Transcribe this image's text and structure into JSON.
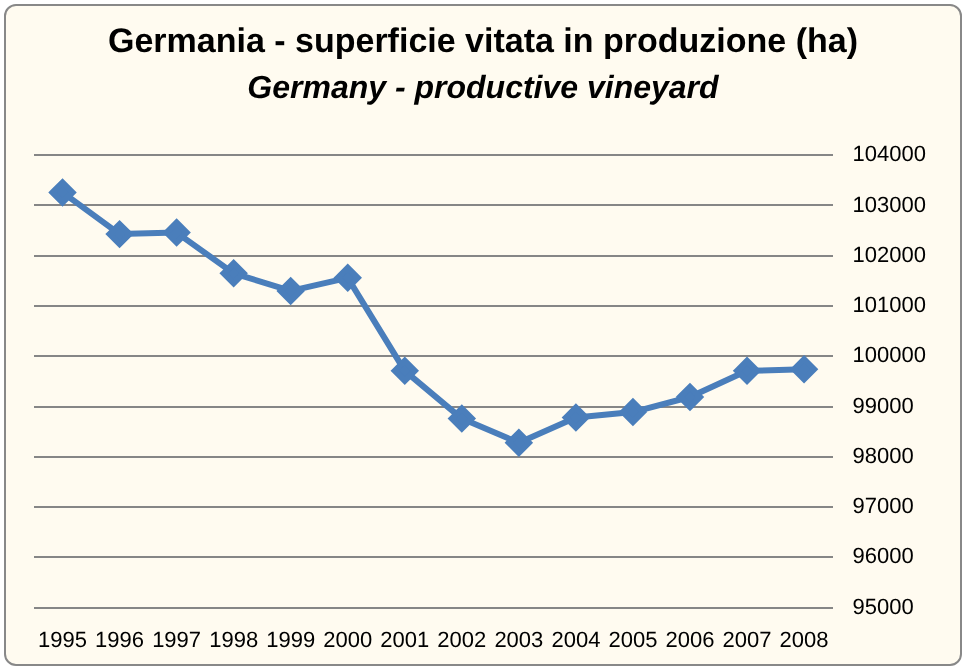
{
  "chart_data": {
    "type": "line",
    "title": "Germania - superficie vitata in produzione (ha)",
    "subtitle": "Germany - productive vineyard",
    "categories": [
      "1995",
      "1996",
      "1997",
      "1998",
      "1999",
      "2000",
      "2001",
      "2002",
      "2003",
      "2004",
      "2005",
      "2006",
      "2007",
      "2008"
    ],
    "series": [
      {
        "color": "#4a7ebb",
        "values": [
          103260,
          102430,
          102460,
          101650,
          101300,
          101560,
          99710,
          98760,
          98280,
          98780,
          98890,
          99190,
          99710,
          99740
        ]
      }
    ],
    "ylim": [
      95000,
      104000
    ],
    "yticks": [
      95000,
      96000,
      97000,
      98000,
      99000,
      100000,
      101000,
      102000,
      103000,
      104000
    ],
    "grid": "y",
    "marker": "diamond",
    "legend": false
  }
}
